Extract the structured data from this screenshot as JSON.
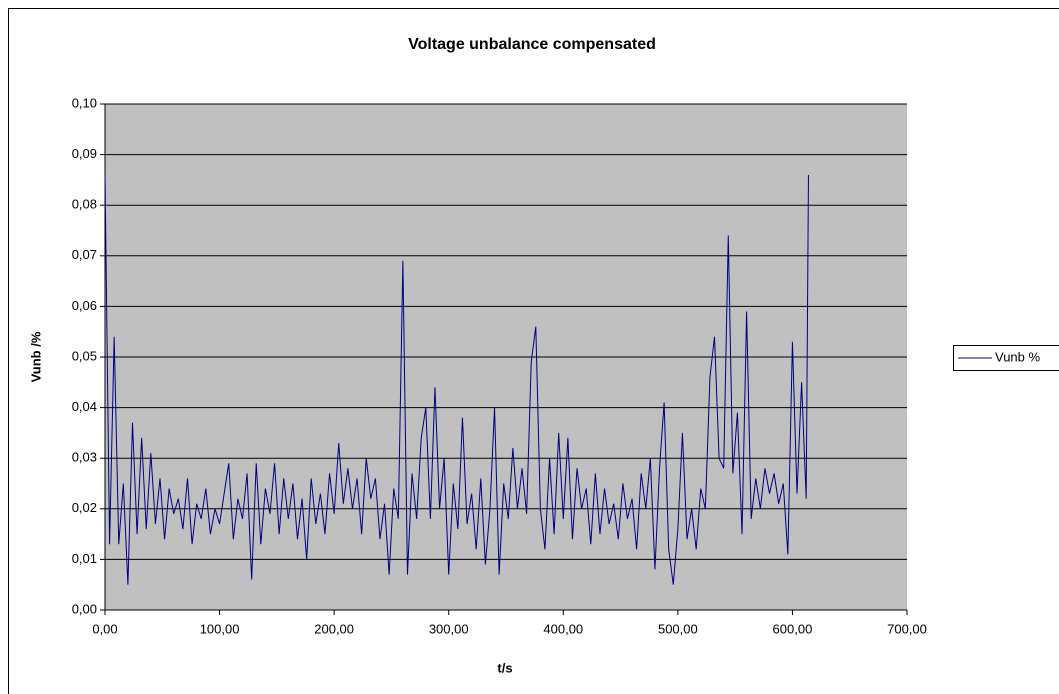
{
  "chart_data": {
    "type": "line",
    "title": "Voltage unbalance compensated",
    "xlabel": "t/s",
    "ylabel": "Vunb /%",
    "x": [
      0,
      4,
      8,
      12,
      16,
      20,
      24,
      28,
      32,
      36,
      40,
      44,
      48,
      52,
      56,
      60,
      64,
      68,
      72,
      76,
      80,
      84,
      88,
      92,
      96,
      100,
      104,
      108,
      112,
      116,
      120,
      124,
      128,
      132,
      136,
      140,
      144,
      148,
      152,
      156,
      160,
      164,
      168,
      172,
      176,
      180,
      184,
      188,
      192,
      196,
      200,
      204,
      208,
      212,
      216,
      220,
      224,
      228,
      232,
      236,
      240,
      244,
      248,
      252,
      256,
      260,
      264,
      268,
      272,
      276,
      280,
      284,
      288,
      292,
      296,
      300,
      304,
      308,
      312,
      316,
      320,
      324,
      328,
      332,
      336,
      340,
      344,
      348,
      352,
      356,
      360,
      364,
      368,
      372,
      376,
      380,
      384,
      388,
      392,
      396,
      400,
      404,
      408,
      412,
      416,
      420,
      424,
      428,
      432,
      436,
      440,
      444,
      448,
      452,
      456,
      460,
      464,
      468,
      472,
      476,
      480,
      484,
      488,
      492,
      496,
      500,
      504,
      508,
      512,
      516,
      520,
      524,
      528,
      532,
      536,
      540,
      544,
      548,
      552,
      556,
      560,
      564,
      568,
      572,
      576,
      580,
      584,
      588,
      592,
      596,
      600,
      604,
      608,
      612,
      614
    ],
    "series": [
      {
        "name": "Vunb %",
        "color": "#000080",
        "values": [
          0.086,
          0.013,
          0.054,
          0.013,
          0.025,
          0.005,
          0.037,
          0.015,
          0.034,
          0.016,
          0.031,
          0.017,
          0.026,
          0.014,
          0.024,
          0.019,
          0.022,
          0.016,
          0.026,
          0.013,
          0.021,
          0.018,
          0.024,
          0.015,
          0.02,
          0.017,
          0.023,
          0.029,
          0.014,
          0.022,
          0.018,
          0.027,
          0.006,
          0.029,
          0.013,
          0.024,
          0.019,
          0.029,
          0.015,
          0.026,
          0.018,
          0.025,
          0.014,
          0.022,
          0.01,
          0.026,
          0.017,
          0.023,
          0.015,
          0.027,
          0.019,
          0.033,
          0.021,
          0.028,
          0.02,
          0.026,
          0.015,
          0.03,
          0.022,
          0.026,
          0.014,
          0.021,
          0.007,
          0.024,
          0.018,
          0.069,
          0.007,
          0.027,
          0.018,
          0.034,
          0.04,
          0.018,
          0.044,
          0.02,
          0.03,
          0.007,
          0.025,
          0.016,
          0.038,
          0.017,
          0.023,
          0.012,
          0.026,
          0.009,
          0.02,
          0.04,
          0.007,
          0.025,
          0.018,
          0.032,
          0.02,
          0.028,
          0.019,
          0.049,
          0.056,
          0.02,
          0.012,
          0.03,
          0.015,
          0.035,
          0.018,
          0.034,
          0.014,
          0.028,
          0.02,
          0.024,
          0.013,
          0.027,
          0.015,
          0.024,
          0.017,
          0.021,
          0.014,
          0.025,
          0.018,
          0.022,
          0.012,
          0.027,
          0.02,
          0.03,
          0.008,
          0.028,
          0.041,
          0.012,
          0.005,
          0.016,
          0.035,
          0.014,
          0.02,
          0.012,
          0.024,
          0.02,
          0.046,
          0.054,
          0.03,
          0.028,
          0.074,
          0.027,
          0.039,
          0.015,
          0.059,
          0.018,
          0.026,
          0.02,
          0.028,
          0.023,
          0.027,
          0.021,
          0.025,
          0.011,
          0.053,
          0.023,
          0.045,
          0.022,
          0.086
        ]
      }
    ],
    "xlim": [
      0,
      700
    ],
    "xticks": [
      {
        "value": 0,
        "label": "0,00"
      },
      {
        "value": 100,
        "label": "100,00"
      },
      {
        "value": 200,
        "label": "200,00"
      },
      {
        "value": 300,
        "label": "300,00"
      },
      {
        "value": 400,
        "label": "400,00"
      },
      {
        "value": 500,
        "label": "500,00"
      },
      {
        "value": 600,
        "label": "600,00"
      },
      {
        "value": 700,
        "label": "700,00"
      }
    ],
    "ylim": [
      0,
      0.1
    ],
    "yticks": [
      {
        "value": 0,
        "label": "0,00"
      },
      {
        "value": 0.01,
        "label": "0,01"
      },
      {
        "value": 0.02,
        "label": "0,02"
      },
      {
        "value": 0.03,
        "label": "0,03"
      },
      {
        "value": 0.04,
        "label": "0,04"
      },
      {
        "value": 0.05,
        "label": "0,05"
      },
      {
        "value": 0.06,
        "label": "0,06"
      },
      {
        "value": 0.07,
        "label": "0,07"
      },
      {
        "value": 0.08,
        "label": "0,08"
      },
      {
        "value": 0.09,
        "label": "0,09"
      },
      {
        "value": 0.1,
        "label": "0,10"
      }
    ],
    "grid": true,
    "legend": "right"
  }
}
